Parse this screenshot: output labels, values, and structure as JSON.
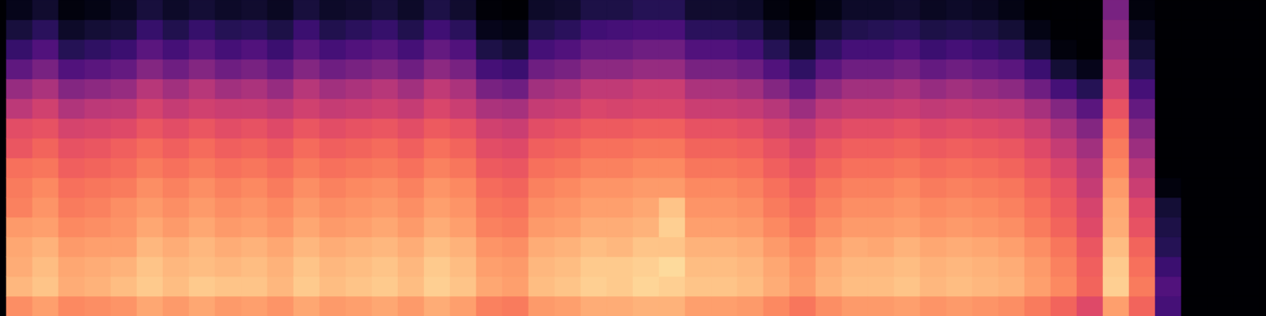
{
  "chart_data": {
    "type": "heatmap",
    "color": "magma",
    "tick_labels": false,
    "zlim": [
      -80,
      0
    ],
    "values": [
      [
        -19,
        -12,
        -14,
        -15,
        -17,
        -21,
        -22,
        -24,
        -29,
        -31,
        -39,
        -46,
        -57,
        -65,
        -71,
        -76
      ],
      [
        -16,
        -10,
        -11,
        -13,
        -16,
        -18,
        -20,
        -23,
        -26,
        -30,
        -35,
        -42,
        -52,
        -60,
        -67,
        -73
      ],
      [
        -20,
        -14,
        -15,
        -17,
        -20,
        -22,
        -24,
        -27,
        -30,
        -34,
        -41,
        -50,
        -60,
        -68,
        -74,
        -78
      ],
      [
        -19,
        -13,
        -14,
        -16,
        -19,
        -21,
        -23,
        -26,
        -29,
        -33,
        -39,
        -48,
        -58,
        -66,
        -72,
        -77
      ],
      [
        -18,
        -11,
        -13,
        -16,
        -18,
        -19,
        -22,
        -25,
        -27,
        -32,
        -38,
        -46,
        -56,
        -64,
        -71,
        -75
      ],
      [
        -15,
        -9,
        -10,
        -12,
        -15,
        -17,
        -19,
        -22,
        -25,
        -29,
        -34,
        -40,
        -50,
        -58,
        -65,
        -71
      ],
      [
        -17,
        -11,
        -12,
        -14,
        -17,
        -19,
        -21,
        -24,
        -27,
        -31,
        -37,
        -44,
        -54,
        -62,
        -69,
        -74
      ],
      [
        -15,
        -9,
        -11,
        -12,
        -15,
        -17,
        -19,
        -22,
        -25,
        -29,
        -35,
        -40,
        -50,
        -58,
        -65,
        -72
      ],
      [
        -17,
        -10,
        -12,
        -14,
        -17,
        -19,
        -21,
        -24,
        -27,
        -31,
        -36,
        -44,
        -54,
        -62,
        -68,
        -74
      ],
      [
        -16,
        -10,
        -11,
        -13,
        -16,
        -18,
        -20,
        -23,
        -26,
        -30,
        -36,
        -42,
        -52,
        -60,
        -67,
        -73
      ],
      [
        -18,
        -12,
        -13,
        -15,
        -18,
        -20,
        -22,
        -25,
        -28,
        -32,
        -38,
        -46,
        -56,
        -64,
        -70,
        -75
      ],
      [
        -15,
        -9,
        -10,
        -12,
        -15,
        -17,
        -19,
        -22,
        -25,
        -29,
        -35,
        -40,
        -50,
        -58,
        -64,
        -71
      ],
      [
        -17,
        -11,
        -12,
        -14,
        -17,
        -19,
        -21,
        -24,
        -27,
        -31,
        -37,
        -44,
        -54,
        -62,
        -69,
        -74
      ],
      [
        -16,
        -10,
        -11,
        -13,
        -16,
        -18,
        -20,
        -23,
        -26,
        -30,
        -36,
        -42,
        -52,
        -60,
        -67,
        -73
      ],
      [
        -15,
        -9,
        -10,
        -12,
        -15,
        -17,
        -19,
        -22,
        -25,
        -29,
        -35,
        -40,
        -50,
        -58,
        -65,
        -71
      ],
      [
        -17,
        -11,
        -12,
        -14,
        -17,
        -19,
        -21,
        -24,
        -27,
        -31,
        -37,
        -44,
        -54,
        -62,
        -69,
        -74
      ],
      [
        -14,
        -8,
        -9,
        -11,
        -14,
        -16,
        -18,
        -21,
        -24,
        -28,
        -33,
        -38,
        -48,
        -56,
        -63,
        -70
      ],
      [
        -16,
        -10,
        -11,
        -13,
        -16,
        -18,
        -20,
        -23,
        -26,
        -30,
        -36,
        -42,
        -52,
        -60,
        -67,
        -73
      ],
      [
        -21,
        -15,
        -16,
        -18,
        -21,
        -23,
        -25,
        -28,
        -31,
        -35,
        -42,
        -52,
        -62,
        -70,
        -76,
        -79
      ],
      [
        -22,
        -16,
        -17,
        -19,
        -22,
        -24,
        -26,
        -29,
        -32,
        -36,
        -43,
        -54,
        -64,
        -72,
        -77,
        -80
      ],
      [
        -17,
        -11,
        -12,
        -14,
        -17,
        -19,
        -21,
        -24,
        -27,
        -31,
        -37,
        -44,
        -54,
        -62,
        -69,
        -74
      ],
      [
        -16,
        -10,
        -11,
        -13,
        -16,
        -18,
        -20,
        -23,
        -26,
        -30,
        -36,
        -42,
        -52,
        -60,
        -67,
        -73
      ],
      [
        -14,
        -8,
        -9,
        -11,
        -14,
        -16,
        -18,
        -21,
        -24,
        -28,
        -33,
        -38,
        -48,
        -56,
        -63,
        -70
      ],
      [
        -14,
        -9,
        -9,
        -12,
        -14,
        -16,
        -18,
        -21,
        -24,
        -28,
        -34,
        -38,
        -48,
        -56,
        -62,
        -70
      ],
      [
        -13,
        -7,
        -8,
        -10,
        -13,
        -15,
        -17,
        -20,
        -23,
        -27,
        -33,
        -36,
        -46,
        -54,
        -61,
        -68
      ],
      [
        -13,
        -8,
        -6,
        -10,
        -8,
        -10,
        -17,
        -20,
        -23,
        -27,
        -33,
        -36,
        -46,
        -54,
        -61,
        -68
      ],
      [
        -16,
        -10,
        -11,
        -13,
        -16,
        -18,
        -20,
        -23,
        -26,
        -30,
        -36,
        -42,
        -52,
        -60,
        -67,
        -73
      ],
      [
        -16,
        -10,
        -11,
        -13,
        -16,
        -18,
        -20,
        -23,
        -26,
        -30,
        -36,
        -42,
        -52,
        -60,
        -67,
        -73
      ],
      [
        -17,
        -11,
        -12,
        -14,
        -17,
        -19,
        -21,
        -24,
        -27,
        -31,
        -37,
        -44,
        -54,
        -62,
        -69,
        -74
      ],
      [
        -20,
        -14,
        -15,
        -17,
        -20,
        -22,
        -24,
        -27,
        -30,
        -34,
        -40,
        -50,
        -60,
        -68,
        -74,
        -78
      ],
      [
        -23,
        -17,
        -18,
        -20,
        -23,
        -25,
        -27,
        -30,
        -33,
        -37,
        -45,
        -56,
        -66,
        -74,
        -78,
        -80
      ],
      [
        -19,
        -13,
        -14,
        -16,
        -19,
        -21,
        -23,
        -26,
        -29,
        -33,
        -39,
        -48,
        -58,
        -66,
        -72,
        -77
      ],
      [
        -17,
        -11,
        -12,
        -14,
        -17,
        -19,
        -21,
        -24,
        -27,
        -31,
        -37,
        -44,
        -54,
        -62,
        -69,
        -74
      ],
      [
        -17,
        -11,
        -12,
        -15,
        -17,
        -19,
        -21,
        -24,
        -27,
        -31,
        -37,
        -44,
        -54,
        -62,
        -68,
        -74
      ],
      [
        -16,
        -10,
        -11,
        -13,
        -16,
        -18,
        -20,
        -23,
        -26,
        -30,
        -36,
        -42,
        -52,
        -60,
        -67,
        -73
      ],
      [
        -18,
        -12,
        -13,
        -15,
        -18,
        -20,
        -22,
        -25,
        -28,
        -32,
        -38,
        -46,
        -56,
        -64,
        -70,
        -75
      ],
      [
        -17,
        -11,
        -12,
        -14,
        -17,
        -19,
        -21,
        -24,
        -27,
        -31,
        -37,
        -44,
        -54,
        -62,
        -69,
        -74
      ],
      [
        -18,
        -12,
        -13,
        -15,
        -18,
        -20,
        -22,
        -25,
        -28,
        -32,
        -38,
        -46,
        -56,
        -64,
        -70,
        -75
      ],
      [
        -19,
        -13,
        -14,
        -16,
        -19,
        -21,
        -23,
        -26,
        -29,
        -33,
        -39,
        -48,
        -58,
        -66,
        -72,
        -77
      ],
      [
        -22,
        -16,
        -17,
        -19,
        -22,
        -24,
        -26,
        -29,
        -32,
        -36,
        -43,
        -54,
        -64,
        -72,
        -77,
        -80
      ],
      [
        -26,
        -20,
        -21,
        -23,
        -26,
        -28,
        -30,
        -33,
        -37,
        -42,
        -50,
        -62,
        -72,
        -78,
        -80,
        -80
      ],
      [
        -32,
        -26,
        -27,
        -29,
        -32,
        -34,
        -37,
        -40,
        -44,
        -50,
        -58,
        -68,
        -76,
        -80,
        -80,
        -80
      ],
      [
        -16,
        -8,
        -9,
        -11,
        -14,
        -15,
        -17,
        -20,
        -22,
        -25,
        -30,
        -35,
        -40,
        -45,
        -48,
        -52
      ],
      [
        -26,
        -22,
        -24,
        -26,
        -30,
        -32,
        -36,
        -40,
        -45,
        -50,
        -56,
        -62,
        -68,
        -72,
        -75,
        -78
      ],
      [
        -62,
        -60,
        -64,
        -68,
        -70,
        -72,
        -78,
        -80,
        -80,
        -80,
        -80,
        -80,
        -80,
        -80,
        -80,
        -80
      ],
      [
        -80,
        -80,
        -80,
        -80,
        -80,
        -80,
        -80,
        -80,
        -80,
        -80,
        -80,
        -80,
        -80,
        -80,
        -80,
        -80
      ],
      [
        -80,
        -80,
        -80,
        -80,
        -80,
        -80,
        -80,
        -80,
        -80,
        -80,
        -80,
        -80,
        -80,
        -80,
        -80,
        -80
      ],
      [
        -80,
        -80,
        -80,
        -80,
        -80,
        -80,
        -80,
        -80,
        -80,
        -80,
        -80,
        -80,
        -80,
        -80,
        -80,
        -80
      ]
    ]
  }
}
